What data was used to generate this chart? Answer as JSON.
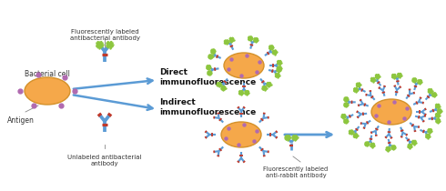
{
  "bg_color": "#ffffff",
  "cell_color": "#F5A84A",
  "cell_edge": "#D4912A",
  "antigen_color": "#B06AB0",
  "ab_stem_color": "#5B9BD5",
  "ab_arm_color": "#C0392B",
  "fluor_color": "#8DC63F",
  "arrow_color": "#5B9BD5",
  "text_color": "#333333",
  "bold_color": "#111111",
  "label_bacterial": "Bacterial cell",
  "label_antigen": "Antigen",
  "label_fluor_ab": "Fluorescently labeled\nantibacterial antibody",
  "label_unlabeled": "Unlabeled antibacterial\nantibody",
  "label_direct": "Direct\nimmunofluorescence",
  "label_indirect": "Indirect\nimmunofluorescence",
  "label_fluor_rabbit": "Fluorescently labeled\nanti-rabbit antibody",
  "figsize": [
    4.9,
    2.1
  ],
  "dpi": 100
}
